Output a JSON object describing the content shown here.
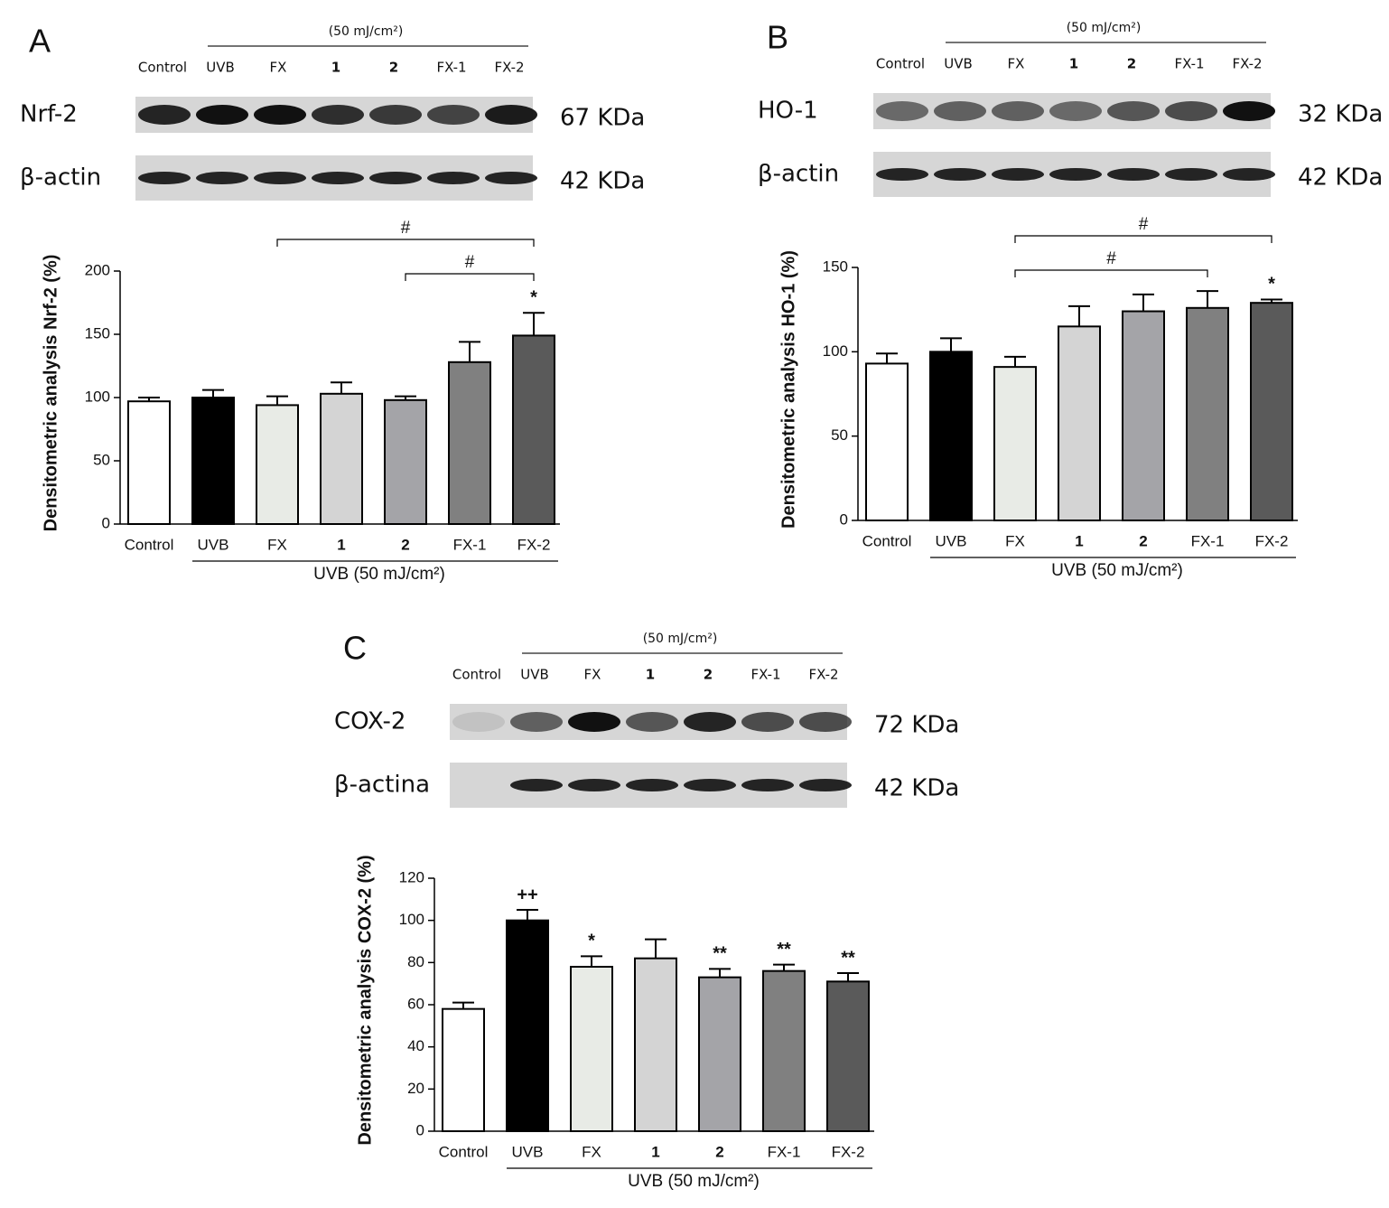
{
  "chart_data": [
    {
      "type": "bar",
      "panel": "A",
      "blot": {
        "header": "(50 mJ/cm²)",
        "lanes": [
          "Control",
          "UVB",
          "FX",
          "1",
          "2",
          "FX-1",
          "FX-2"
        ],
        "rows": [
          {
            "label": "Nrf-2",
            "size": "67 KDa"
          },
          {
            "label": "β-actin",
            "size": "42 KDa"
          }
        ]
      },
      "categories": [
        "Control",
        "UVB",
        "FX",
        "1",
        "2",
        "FX-1",
        "FX-2"
      ],
      "values": [
        97,
        100,
        94,
        103,
        98,
        128,
        149
      ],
      "errors": [
        3,
        6,
        7,
        9,
        3,
        16,
        18
      ],
      "colors": [
        "#ffffff",
        "#000000",
        "#e8ebe6",
        "#d4d4d4",
        "#a4a4a8",
        "#808080",
        "#5a5a5a"
      ],
      "ylabel": "Densitometric analysis Nrf-2 (%)",
      "xlabel": "UVB (50 mJ/cm²)",
      "ylim": [
        0,
        200
      ],
      "yticks": [
        0,
        50,
        100,
        150,
        200
      ],
      "annotations": [
        {
          "text": "*",
          "at": "FX-2"
        }
      ],
      "brackets": [
        {
          "text": "#",
          "from": "FX",
          "to": "FX-2"
        },
        {
          "text": "#",
          "from": "2",
          "to": "FX-2"
        }
      ]
    },
    {
      "type": "bar",
      "panel": "B",
      "blot": {
        "header": "(50 mJ/cm²)",
        "lanes": [
          "Control",
          "UVB",
          "FX",
          "1",
          "2",
          "FX-1",
          "FX-2"
        ],
        "rows": [
          {
            "label": "HO-1",
            "size": "32 KDa"
          },
          {
            "label": "β-actin",
            "size": "42 KDa"
          }
        ]
      },
      "categories": [
        "Control",
        "UVB",
        "FX",
        "1",
        "2",
        "FX-1",
        "FX-2"
      ],
      "values": [
        93,
        100,
        91,
        115,
        124,
        126,
        129
      ],
      "errors": [
        6,
        8,
        6,
        12,
        10,
        10,
        2
      ],
      "colors": [
        "#ffffff",
        "#000000",
        "#e8ebe6",
        "#d4d4d4",
        "#a4a4a8",
        "#808080",
        "#5a5a5a"
      ],
      "ylabel": "Densitometric analysis HO-1 (%)",
      "xlabel": "UVB (50 mJ/cm²)",
      "ylim": [
        0,
        150
      ],
      "yticks": [
        0,
        50,
        100,
        150
      ],
      "annotations": [
        {
          "text": "*",
          "at": "FX-2"
        }
      ],
      "brackets": [
        {
          "text": "#",
          "from": "FX",
          "to": "FX-2"
        },
        {
          "text": "#",
          "from": "FX",
          "to": "FX-1"
        }
      ]
    },
    {
      "type": "bar",
      "panel": "C",
      "blot": {
        "header": "(50 mJ/cm²)",
        "lanes": [
          "Control",
          "UVB",
          "FX",
          "1",
          "2",
          "FX-1",
          "FX-2"
        ],
        "rows": [
          {
            "label": "COX-2",
            "size": "72 KDa"
          },
          {
            "label": "β-actina",
            "size": "42 KDa"
          }
        ]
      },
      "categories": [
        "Control",
        "UVB",
        "FX",
        "1",
        "2",
        "FX-1",
        "FX-2"
      ],
      "values": [
        58,
        100,
        78,
        82,
        73,
        76,
        71
      ],
      "errors": [
        3,
        5,
        5,
        9,
        4,
        3,
        4
      ],
      "colors": [
        "#ffffff",
        "#000000",
        "#e8ebe6",
        "#d4d4d4",
        "#a4a4a8",
        "#808080",
        "#5a5a5a"
      ],
      "ylabel": "Densitometric analysis COX-2 (%)",
      "xlabel": "UVB (50 mJ/cm²)",
      "ylim": [
        0,
        120
      ],
      "yticks": [
        0,
        20,
        40,
        60,
        80,
        100,
        120
      ],
      "annotations": [
        {
          "text": "++",
          "at": "UVB"
        },
        {
          "text": "*",
          "at": "FX"
        },
        {
          "text": "**",
          "at": "2"
        },
        {
          "text": "**",
          "at": "FX-1"
        },
        {
          "text": "**",
          "at": "FX-2"
        }
      ],
      "brackets": []
    }
  ]
}
